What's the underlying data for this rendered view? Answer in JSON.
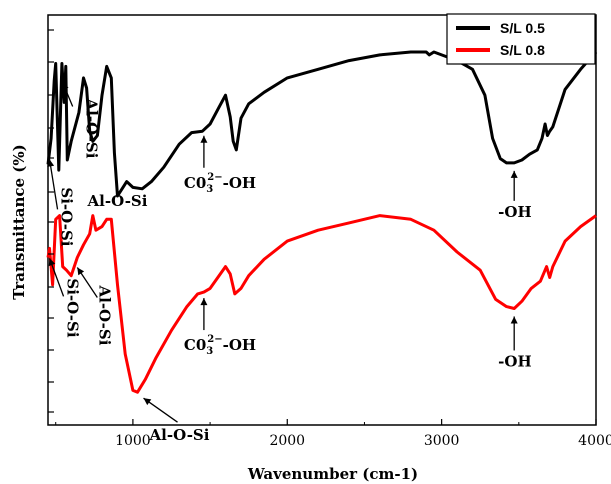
{
  "chart_data": {
    "type": "line",
    "xlabel": "Wavenumber (cm-1)",
    "ylabel": "Transmittance (%)",
    "xlim": [
      450,
      4000
    ],
    "x_ticks": [
      1000,
      2000,
      3000,
      4000
    ],
    "x_tick_labels": [
      "1000",
      "2000",
      "3000",
      "4000"
    ],
    "y_ticks_visible_labels": false,
    "legend_position": "top-right",
    "series": [
      {
        "name": "S/L 0.5",
        "color": "#000000",
        "points": [
          [
            450,
            0.78
          ],
          [
            470,
            0.6
          ],
          [
            490,
            0.2
          ],
          [
            500,
            0.08
          ],
          [
            520,
            0.82
          ],
          [
            540,
            0.08
          ],
          [
            555,
            0.35
          ],
          [
            565,
            0.1
          ],
          [
            575,
            0.75
          ],
          [
            600,
            0.62
          ],
          [
            650,
            0.42
          ],
          [
            680,
            0.18
          ],
          [
            700,
            0.25
          ],
          [
            720,
            0.55
          ],
          [
            740,
            0.62
          ],
          [
            770,
            0.58
          ],
          [
            800,
            0.3
          ],
          [
            830,
            0.1
          ],
          [
            860,
            0.18
          ],
          [
            880,
            0.7
          ],
          [
            900,
            1.0
          ],
          [
            960,
            0.9
          ],
          [
            1000,
            0.94
          ],
          [
            1060,
            0.95
          ],
          [
            1120,
            0.9
          ],
          [
            1200,
            0.8
          ],
          [
            1300,
            0.64
          ],
          [
            1380,
            0.56
          ],
          [
            1450,
            0.55
          ],
          [
            1500,
            0.5
          ],
          [
            1560,
            0.38
          ],
          [
            1600,
            0.3
          ],
          [
            1630,
            0.45
          ],
          [
            1650,
            0.62
          ],
          [
            1670,
            0.68
          ],
          [
            1700,
            0.46
          ],
          [
            1750,
            0.36
          ],
          [
            1850,
            0.28
          ],
          [
            2000,
            0.18
          ],
          [
            2200,
            0.12
          ],
          [
            2400,
            0.06
          ],
          [
            2600,
            0.02
          ],
          [
            2800,
            0.0
          ],
          [
            2900,
            0.0
          ],
          [
            2920,
            0.02
          ],
          [
            2950,
            0.0
          ],
          [
            3000,
            0.02
          ],
          [
            3100,
            0.06
          ],
          [
            3200,
            0.12
          ],
          [
            3280,
            0.3
          ],
          [
            3330,
            0.6
          ],
          [
            3380,
            0.74
          ],
          [
            3420,
            0.77
          ],
          [
            3470,
            0.77
          ],
          [
            3520,
            0.75
          ],
          [
            3570,
            0.71
          ],
          [
            3620,
            0.68
          ],
          [
            3650,
            0.6
          ],
          [
            3670,
            0.5
          ],
          [
            3685,
            0.58
          ],
          [
            3700,
            0.55
          ],
          [
            3720,
            0.52
          ],
          [
            3800,
            0.26
          ],
          [
            3900,
            0.12
          ],
          [
            4000,
            0.0
          ]
        ]
      },
      {
        "name": "S/L 0.8",
        "color": "#ff0000",
        "points": [
          [
            450,
            0.25
          ],
          [
            460,
            0.2
          ],
          [
            470,
            0.3
          ],
          [
            480,
            0.4
          ],
          [
            500,
            0.04
          ],
          [
            525,
            0.02
          ],
          [
            545,
            0.3
          ],
          [
            570,
            0.32
          ],
          [
            600,
            0.35
          ],
          [
            640,
            0.25
          ],
          [
            680,
            0.18
          ],
          [
            720,
            0.12
          ],
          [
            740,
            0.02
          ],
          [
            760,
            0.1
          ],
          [
            800,
            0.08
          ],
          [
            830,
            0.04
          ],
          [
            860,
            0.04
          ],
          [
            900,
            0.4
          ],
          [
            950,
            0.78
          ],
          [
            1000,
            0.98
          ],
          [
            1030,
            0.99
          ],
          [
            1080,
            0.92
          ],
          [
            1150,
            0.8
          ],
          [
            1250,
            0.65
          ],
          [
            1350,
            0.52
          ],
          [
            1420,
            0.45
          ],
          [
            1460,
            0.44
          ],
          [
            1500,
            0.42
          ],
          [
            1550,
            0.36
          ],
          [
            1600,
            0.3
          ],
          [
            1630,
            0.34
          ],
          [
            1660,
            0.45
          ],
          [
            1700,
            0.42
          ],
          [
            1750,
            0.35
          ],
          [
            1850,
            0.26
          ],
          [
            2000,
            0.16
          ],
          [
            2200,
            0.1
          ],
          [
            2400,
            0.06
          ],
          [
            2600,
            0.02
          ],
          [
            2800,
            0.04
          ],
          [
            2950,
            0.1
          ],
          [
            3100,
            0.22
          ],
          [
            3250,
            0.32
          ],
          [
            3350,
            0.48
          ],
          [
            3420,
            0.52
          ],
          [
            3470,
            0.53
          ],
          [
            3520,
            0.49
          ],
          [
            3580,
            0.42
          ],
          [
            3640,
            0.38
          ],
          [
            3680,
            0.3
          ],
          [
            3700,
            0.36
          ],
          [
            3720,
            0.3
          ],
          [
            3800,
            0.16
          ],
          [
            3900,
            0.08
          ],
          [
            4000,
            0.02
          ]
        ]
      }
    ],
    "annotations": [
      {
        "label": "Si-O-Si",
        "series": 1,
        "x": 460,
        "rotated": true
      },
      {
        "label": "Al-O-Si",
        "series": 1,
        "x": 640,
        "rotated": true
      },
      {
        "label": "Al-O-Si",
        "series": 1,
        "x": 1030,
        "rotated": false
      },
      {
        "label": "-OH",
        "series": 1,
        "x": 3470,
        "rotated": false
      },
      {
        "label": "Si-O-Si",
        "series": 0,
        "x": 460,
        "rotated": true
      },
      {
        "label": "Al-O-Si",
        "series": 0,
        "x": 545,
        "rotated": true
      },
      {
        "label": "Al-O-Si",
        "series": 0,
        "x": 1030,
        "rotated": false
      },
      {
        "label": "-OH",
        "series": 0,
        "x": 3470,
        "rotated": false
      }
    ],
    "carbonate_annotations": [
      {
        "base": "C0",
        "sub": "3",
        "sup": "2−",
        "tail": "-OH",
        "series": 1,
        "x": 1460
      },
      {
        "base": "C0",
        "sub": "3",
        "sup": "2−",
        "tail": "-OH",
        "series": 0,
        "x": 1460
      }
    ]
  }
}
